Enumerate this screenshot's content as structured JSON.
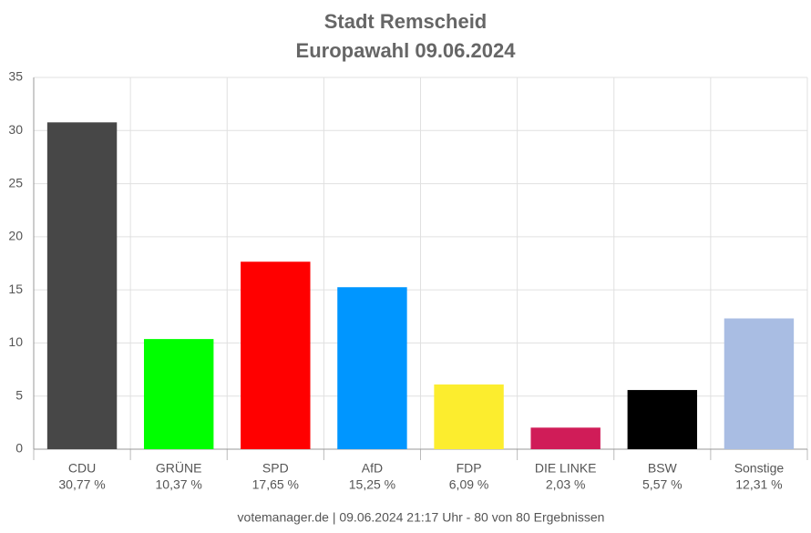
{
  "chart_data": {
    "type": "bar",
    "title": "Stadt Remscheid",
    "subtitle": "Europawahl 09.06.2024",
    "categories": [
      "CDU",
      "GRÜNE",
      "SPD",
      "AfD",
      "FDP",
      "DIE LINKE",
      "BSW",
      "Sonstige"
    ],
    "values": [
      30.77,
      10.37,
      17.65,
      15.25,
      6.09,
      2.03,
      5.57,
      12.31
    ],
    "value_labels": [
      "30,77 %",
      "10,37 %",
      "17,65 %",
      "15,25 %",
      "6,09 %",
      "2,03 %",
      "5,57 %",
      "12,31 %"
    ],
    "colors": [
      "#474747",
      "#00ff00",
      "#ff0000",
      "#0096ff",
      "#fced2e",
      "#d01c58",
      "#000000",
      "#a9bde3"
    ],
    "ylim": [
      0,
      35
    ],
    "yticks": [
      0,
      5,
      10,
      15,
      20,
      25,
      30,
      35
    ],
    "grid": true,
    "source": "votemanager.de | 09.06.2024 21:17 Uhr - 80 von 80 Ergebnissen"
  }
}
